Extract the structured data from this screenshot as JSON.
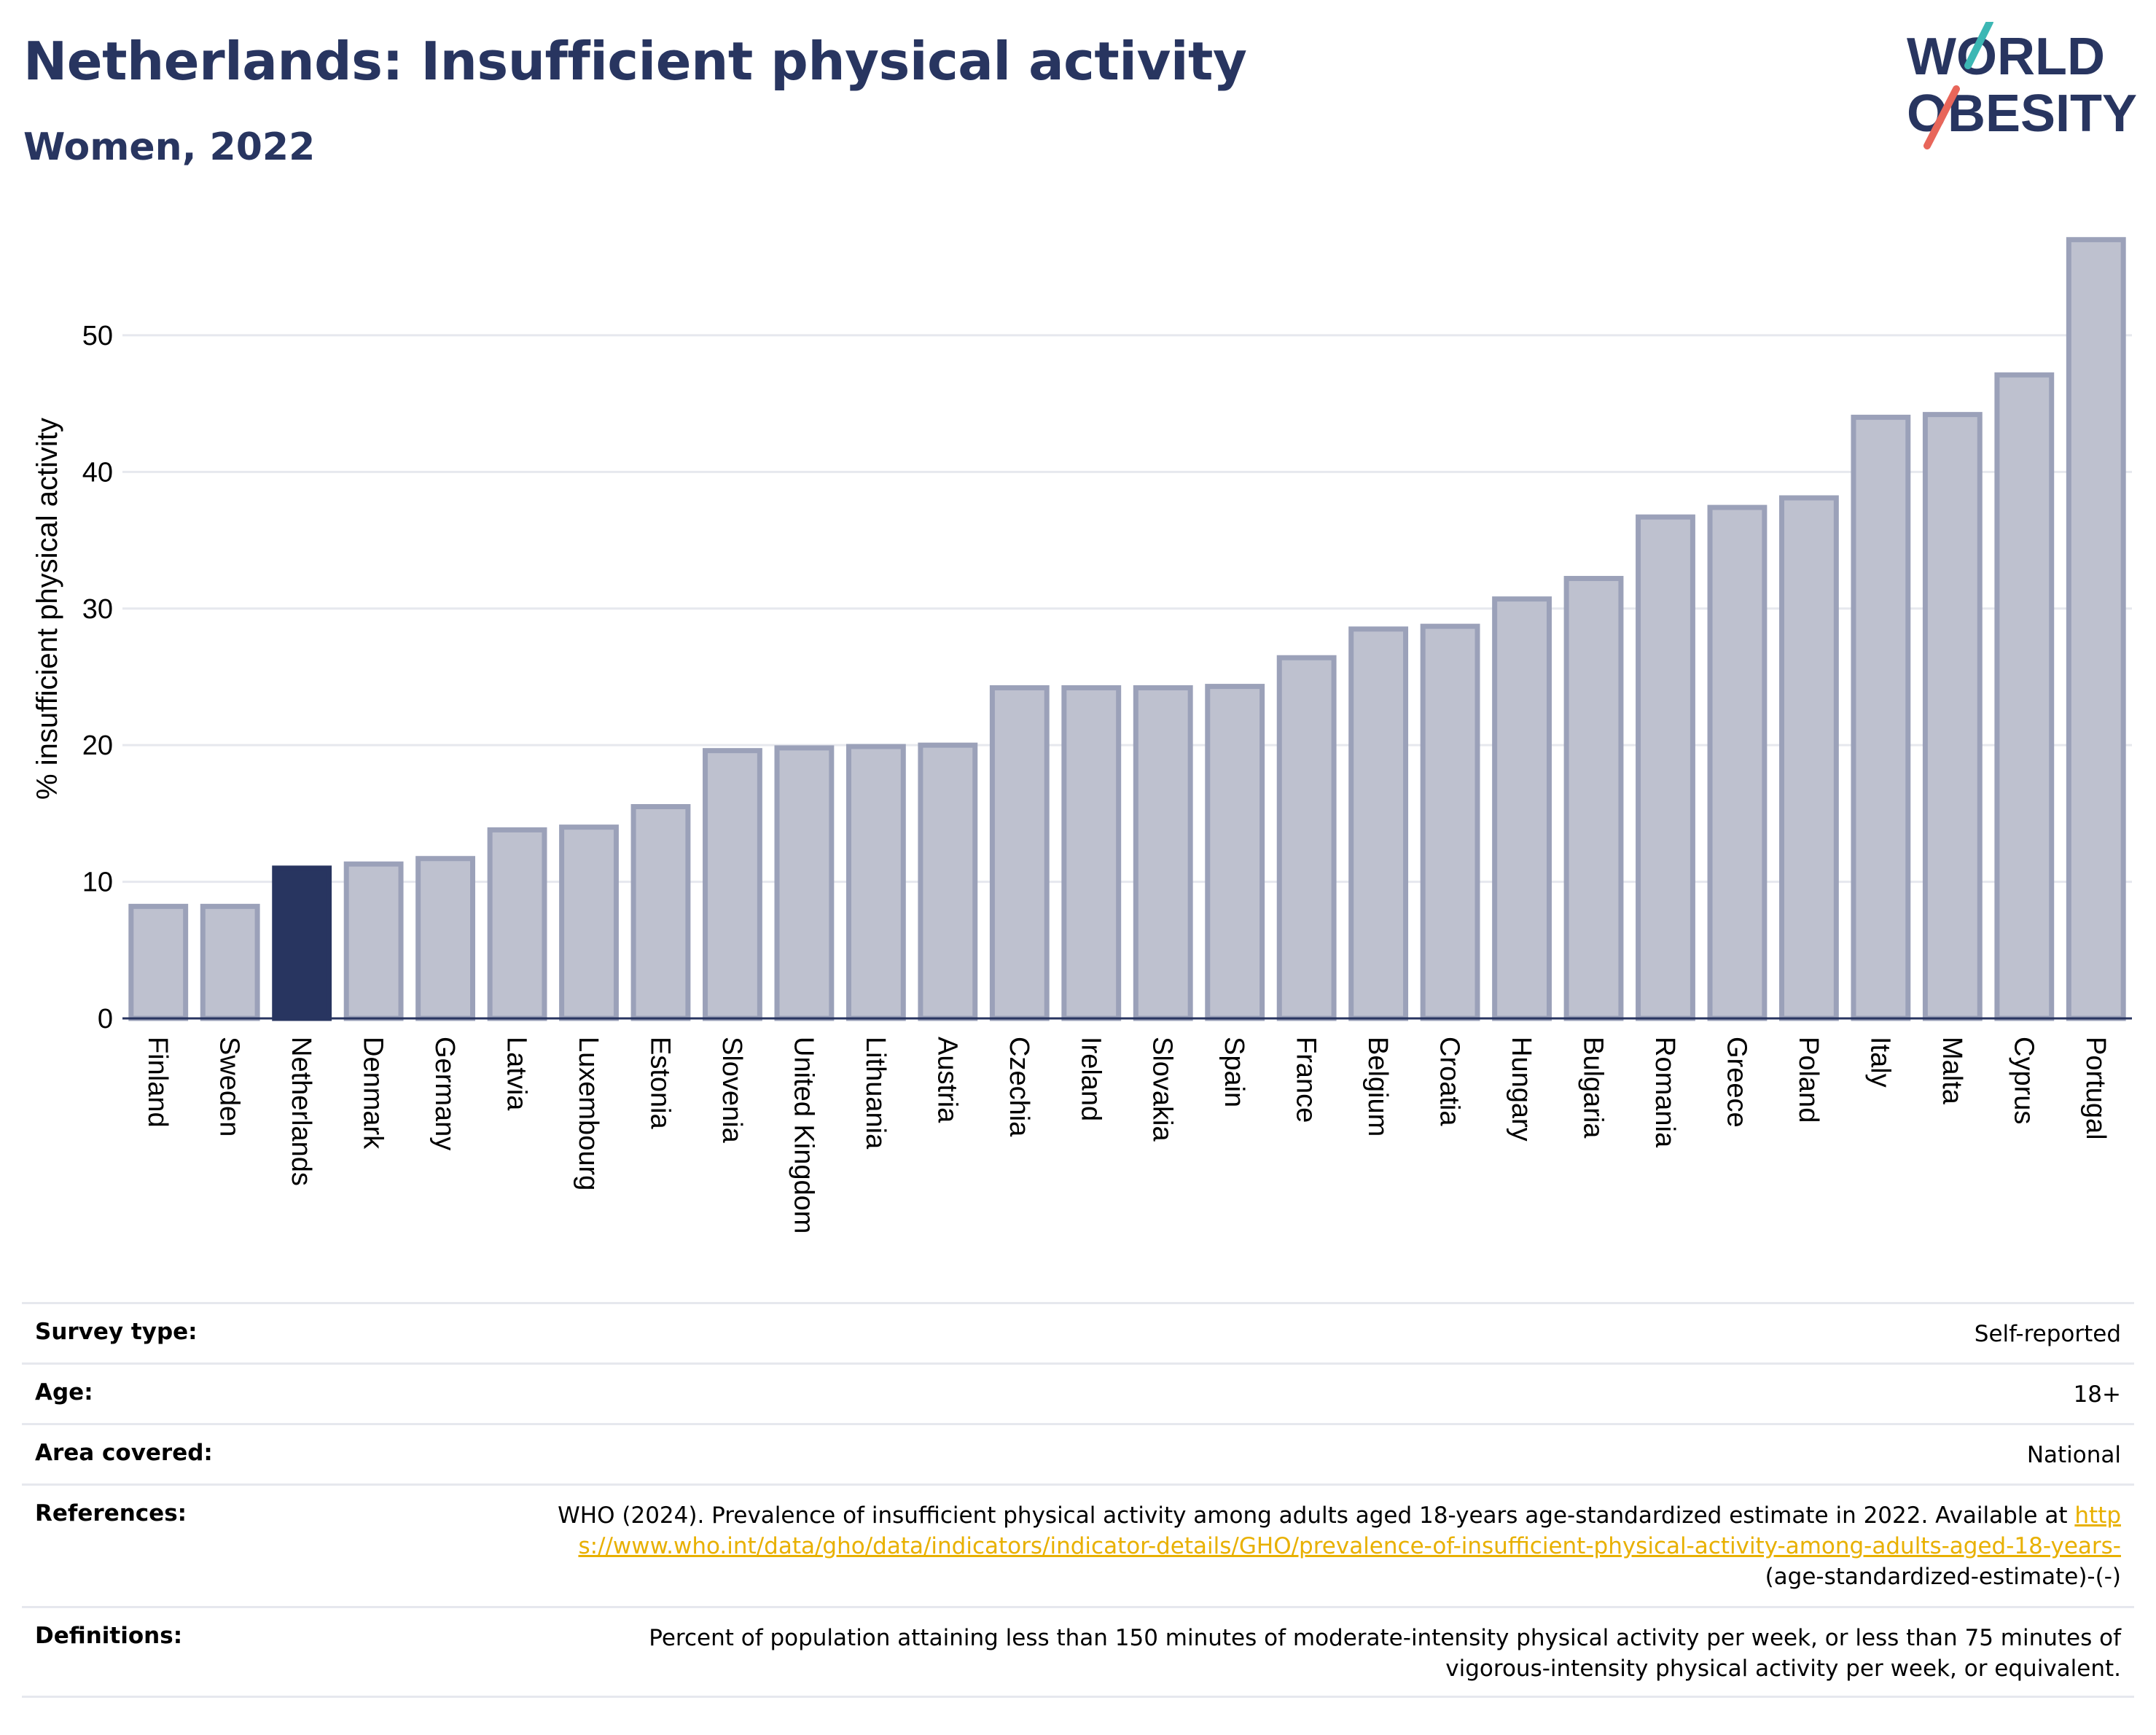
{
  "header": {
    "title": "Netherlands: Insufficient physical activity",
    "subtitle": "Women, 2022",
    "logo_line1": "WORLD",
    "logo_line2": "OBESITY"
  },
  "chart_data": {
    "type": "bar",
    "title": "Netherlands: Insufficient physical activity",
    "subtitle": "Women, 2022",
    "ylabel": "% insufficient physical activity",
    "xlabel": "",
    "ylim": [
      0,
      58
    ],
    "yticks": [
      0,
      10,
      20,
      30,
      40,
      50
    ],
    "grid": true,
    "highlight": "Netherlands",
    "categories": [
      "Finland",
      "Sweden",
      "Netherlands",
      "Denmark",
      "Germany",
      "Latvia",
      "Luxembourg",
      "Estonia",
      "Slovenia",
      "United Kingdom",
      "Lithuania",
      "Austria",
      "Czechia",
      "Ireland",
      "Slovakia",
      "Spain",
      "France",
      "Belgium",
      "Croatia",
      "Hungary",
      "Bulgaria",
      "Romania",
      "Greece",
      "Poland",
      "Italy",
      "Malta",
      "Cyprus",
      "Portugal"
    ],
    "values": [
      8.2,
      8.2,
      11.0,
      11.3,
      11.7,
      13.8,
      14.0,
      15.5,
      19.6,
      19.8,
      19.9,
      20.0,
      24.2,
      24.2,
      24.2,
      24.3,
      26.4,
      28.5,
      28.7,
      30.7,
      32.2,
      36.7,
      37.4,
      38.1,
      44.0,
      44.2,
      47.1,
      57.0
    ]
  },
  "colors": {
    "highlight_bar": "#283560",
    "bar_fill": "#bec1cf",
    "bar_stroke": "#9ba1b9",
    "text_dark": "#283560",
    "logo_teal": "#3cb7b4",
    "logo_coral": "#e8665a",
    "link": "#e8b000",
    "gridline": "#e6e8ee"
  },
  "info": [
    {
      "label": "Survey type:",
      "value": "Self-reported"
    },
    {
      "label": "Age:",
      "value": "18+"
    },
    {
      "label": "Area covered:",
      "value": "National"
    },
    {
      "label": "References:",
      "value": "WHO (2024). Prevalence of insufficient physical activity among adults aged 18-years age-standardized estimate in 2022. Available at",
      "link": "https://www.who.int/data/gho/data/indicators/indicator-details/GHO/prevalence-of-insufficient-physical-activity-among-adults-aged-18-years-",
      "suffix": "(age-standardized-estimate)-(-)"
    },
    {
      "label": "Definitions:",
      "value": "Percent of population attaining less than 150 minutes of moderate-intensity physical activity per week, or less than 75 minutes of vigorous-intensity physical activity per week, or equivalent."
    }
  ]
}
